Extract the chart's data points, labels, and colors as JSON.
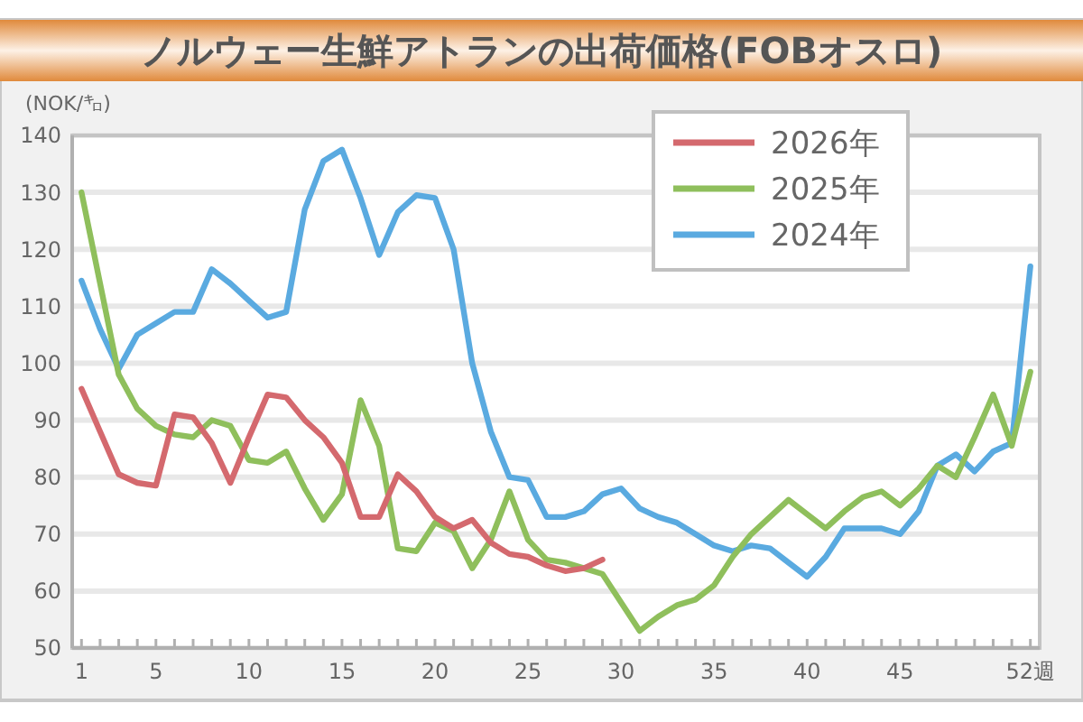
{
  "chart_data": {
    "type": "line",
    "title": "ノルウェー生鮮アトランの出荷価格(FOBオスロ)",
    "ylabel": "(NOK/㌔)",
    "x": [
      1,
      2,
      3,
      4,
      5,
      6,
      7,
      8,
      9,
      10,
      11,
      12,
      13,
      14,
      15,
      16,
      17,
      18,
      19,
      20,
      21,
      22,
      23,
      24,
      25,
      26,
      27,
      28,
      29,
      30,
      31,
      32,
      33,
      34,
      35,
      36,
      37,
      38,
      39,
      40,
      41,
      42,
      43,
      44,
      45,
      46,
      47,
      48,
      49,
      50,
      51,
      52
    ],
    "xlim": [
      0.5,
      52.5
    ],
    "xticks": [
      1,
      {
        "value": 2,
        "label": null
      },
      {
        "value": 3,
        "label": null
      },
      {
        "value": 4,
        "label": null
      },
      5,
      {
        "value": 6,
        "label": null
      },
      {
        "value": 7,
        "label": null
      },
      {
        "value": 8,
        "label": null
      },
      {
        "value": 9,
        "label": null
      },
      10,
      {
        "value": 11,
        "label": null
      },
      {
        "value": 12,
        "label": null
      },
      {
        "value": 13,
        "label": null
      },
      {
        "value": 14,
        "label": null
      },
      15,
      {
        "value": 16,
        "label": null
      },
      {
        "value": 17,
        "label": null
      },
      {
        "value": 18,
        "label": null
      },
      {
        "value": 19,
        "label": null
      },
      20,
      {
        "value": 21,
        "label": null
      },
      {
        "value": 22,
        "label": null
      },
      {
        "value": 23,
        "label": null
      },
      {
        "value": 24,
        "label": null
      },
      25,
      {
        "value": 26,
        "label": null
      },
      {
        "value": 27,
        "label": null
      },
      {
        "value": 28,
        "label": null
      },
      {
        "value": 29,
        "label": null
      },
      30,
      {
        "value": 31,
        "label": null
      },
      {
        "value": 32,
        "label": null
      },
      {
        "value": 33,
        "label": null
      },
      {
        "value": 34,
        "label": null
      },
      35,
      {
        "value": 36,
        "label": null
      },
      {
        "value": 37,
        "label": null
      },
      {
        "value": 38,
        "label": null
      },
      {
        "value": 39,
        "label": null
      },
      40,
      {
        "value": 41,
        "label": null
      },
      {
        "value": 42,
        "label": null
      },
      {
        "value": 43,
        "label": null
      },
      {
        "value": 44,
        "label": null
      },
      45,
      {
        "value": 46,
        "label": null
      },
      {
        "value": 47,
        "label": null
      },
      {
        "value": 48,
        "label": null
      },
      {
        "value": 49,
        "label": null
      },
      {
        "value": 50,
        "label": null
      },
      {
        "value": 51,
        "label": null
      },
      {
        "value": 52,
        "label": "52週"
      }
    ],
    "ylim": [
      50,
      140
    ],
    "yticks": [
      50,
      60,
      70,
      80,
      90,
      100,
      110,
      120,
      130,
      140
    ],
    "grid": "y",
    "legend": "top right",
    "series": [
      {
        "name": "2026年",
        "color": "#d4696e",
        "values": [
          95.5,
          88,
          80.5,
          79,
          78.5,
          91,
          90.5,
          86,
          79,
          87,
          94.5,
          94,
          90,
          87,
          82.5,
          73,
          73,
          80.5,
          77.5,
          73,
          71,
          72.5,
          68.5,
          66.5,
          66,
          64.5,
          63.5,
          64,
          65.5,
          null,
          null,
          null,
          null,
          null,
          null,
          null,
          null,
          null,
          null,
          null,
          null,
          null,
          null,
          null,
          null,
          null,
          null,
          null,
          null,
          null,
          null,
          null
        ]
      },
      {
        "name": "2025年",
        "color": "#8fbf5c",
        "values": [
          130,
          114,
          98,
          92,
          89,
          87.5,
          87,
          90,
          89,
          83,
          82.5,
          84.5,
          78,
          72.5,
          77,
          93.5,
          85.5,
          67.5,
          67,
          72,
          70.5,
          64,
          69,
          77.5,
          69,
          65.5,
          65,
          64,
          63,
          58,
          53,
          55.5,
          57.5,
          58.5,
          61,
          66,
          70,
          73,
          76,
          73.5,
          71,
          74,
          76.5,
          77.5,
          75,
          78,
          82,
          80,
          87,
          94.5,
          85.5,
          98.5
        ]
      },
      {
        "name": "2024年",
        "color": "#5aaae0",
        "values": [
          114.5,
          106,
          99,
          105,
          107,
          109,
          109,
          116.5,
          114,
          111,
          108,
          109,
          127,
          135.5,
          137.5,
          129,
          119,
          126.5,
          129.5,
          129,
          120,
          100,
          88,
          80,
          79.5,
          73,
          73,
          74,
          77,
          78,
          74.5,
          73,
          72,
          70,
          68,
          67,
          68,
          67.5,
          65,
          62.5,
          66,
          71,
          71,
          71,
          70,
          74,
          82,
          84,
          81,
          84.5,
          86,
          117
        ]
      }
    ]
  }
}
